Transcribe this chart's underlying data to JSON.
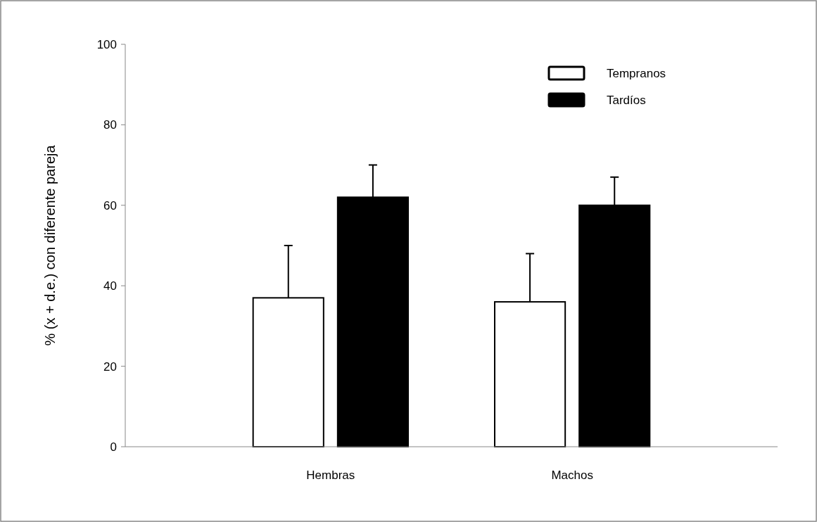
{
  "chart_data": {
    "type": "bar",
    "ylabel": "% (x + d.e.) con diferente pareja",
    "categories": [
      "Hembras",
      "Machos"
    ],
    "series": [
      {
        "name": "Tempranos",
        "color": "#ffffff",
        "values": [
          37,
          36
        ],
        "errors": [
          [
            37,
            50
          ],
          [
            36,
            48
          ]
        ]
      },
      {
        "name": "Tardíos",
        "color": "#000000",
        "values": [
          62,
          60
        ],
        "errors": [
          [
            62,
            70
          ],
          [
            60,
            67
          ]
        ]
      }
    ],
    "ylim": [
      0,
      100
    ],
    "yticks": [
      0,
      20,
      40,
      60,
      80,
      100
    ],
    "grid": false,
    "legend": "top right"
  }
}
